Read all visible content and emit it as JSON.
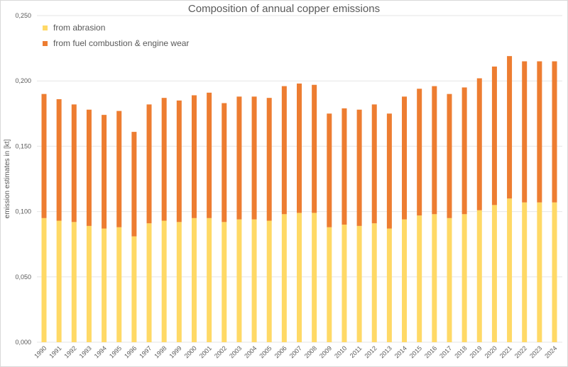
{
  "chart_data": {
    "type": "bar",
    "stacked": true,
    "title": "Composition of annual copper emissions",
    "xlabel": "",
    "ylabel": "emission estimates in [kt]",
    "ylim": [
      0,
      0.25
    ],
    "yticks": [
      "0,000",
      "0,050",
      "0,100",
      "0,150",
      "0,200",
      "0,250"
    ],
    "grid": true,
    "legend_position": "top-left",
    "categories": [
      "1990",
      "1991",
      "1992",
      "1993",
      "1994",
      "1995",
      "1996",
      "1997",
      "1998",
      "1999",
      "2000",
      "2001",
      "2002",
      "2003",
      "2004",
      "2005",
      "2006",
      "2007",
      "2008",
      "2009",
      "2010",
      "2011",
      "2012",
      "2013",
      "2014",
      "2015",
      "2016",
      "2017",
      "2018",
      "2019",
      "2020",
      "2021",
      "2022",
      "2023",
      "2024"
    ],
    "series": [
      {
        "name": "from abrasion",
        "color": "#FFD966",
        "values": [
          0.095,
          0.093,
          0.092,
          0.089,
          0.087,
          0.088,
          0.081,
          0.091,
          0.093,
          0.092,
          0.095,
          0.095,
          0.092,
          0.094,
          0.094,
          0.093,
          0.098,
          0.099,
          0.099,
          0.088,
          0.09,
          0.089,
          0.091,
          0.087,
          0.094,
          0.097,
          0.098,
          0.095,
          0.098,
          0.101,
          0.105,
          0.11,
          0.107,
          0.107,
          0.107
        ]
      },
      {
        "name": "from fuel combustion & engine wear",
        "color": "#ED7D31",
        "values": [
          0.095,
          0.093,
          0.09,
          0.089,
          0.087,
          0.089,
          0.08,
          0.091,
          0.094,
          0.093,
          0.094,
          0.096,
          0.091,
          0.094,
          0.094,
          0.094,
          0.098,
          0.099,
          0.098,
          0.087,
          0.089,
          0.089,
          0.091,
          0.088,
          0.094,
          0.097,
          0.098,
          0.095,
          0.097,
          0.101,
          0.106,
          0.109,
          0.108,
          0.108,
          0.108
        ]
      }
    ]
  }
}
